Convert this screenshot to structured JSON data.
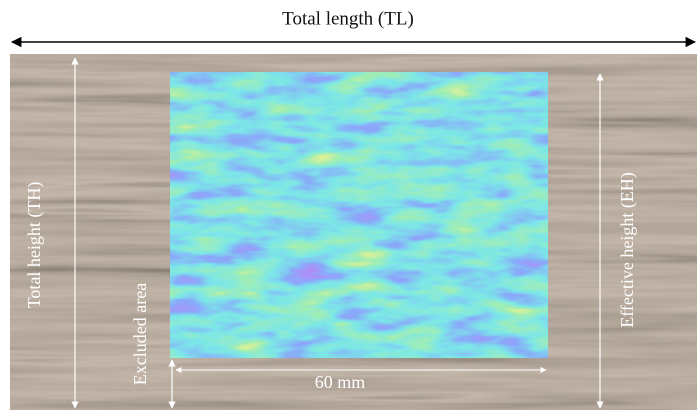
{
  "labels": {
    "total_length": "Total length (TL)",
    "total_height": "Total height (TH)",
    "effective_height": "Effective height (EH)",
    "excluded_area": "Excluded area",
    "width": "60 mm"
  }
}
